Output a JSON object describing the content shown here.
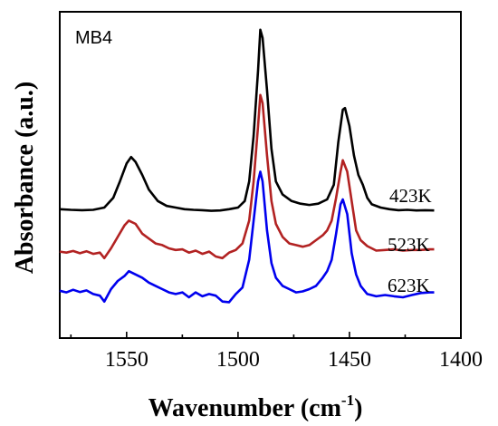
{
  "chart_data": {
    "type": "line",
    "title": "",
    "panel_label": "MB4",
    "xlabel": "Wavenumber (cm",
    "xlabel_sup": "-1",
    "xlabel_close": ")",
    "ylabel": "Absorbance (a.u.)",
    "x_reversed": true,
    "xlim": [
      1580,
      1400
    ],
    "ylim": [
      0,
      1
    ],
    "y_ticks_shown": false,
    "x_ticks": [
      1550,
      1500,
      1450,
      1400
    ],
    "x_tick_labels": [
      "1550",
      "1500",
      "1450",
      "1400"
    ],
    "legend": "inline-right",
    "series": [
      {
        "name": "423K",
        "color": "#000000",
        "points": [
          [
            1580,
            0.395
          ],
          [
            1575,
            0.393
          ],
          [
            1570,
            0.392
          ],
          [
            1565,
            0.393
          ],
          [
            1560,
            0.4
          ],
          [
            1556,
            0.43
          ],
          [
            1553,
            0.48
          ],
          [
            1550,
            0.535
          ],
          [
            1548,
            0.555
          ],
          [
            1546,
            0.54
          ],
          [
            1543,
            0.5
          ],
          [
            1540,
            0.455
          ],
          [
            1536,
            0.42
          ],
          [
            1532,
            0.405
          ],
          [
            1528,
            0.4
          ],
          [
            1524,
            0.395
          ],
          [
            1520,
            0.393
          ],
          [
            1516,
            0.392
          ],
          [
            1512,
            0.39
          ],
          [
            1508,
            0.391
          ],
          [
            1504,
            0.395
          ],
          [
            1500,
            0.4
          ],
          [
            1497,
            0.42
          ],
          [
            1495,
            0.48
          ],
          [
            1493,
            0.62
          ],
          [
            1491,
            0.82
          ],
          [
            1490,
            0.945
          ],
          [
            1489,
            0.92
          ],
          [
            1487,
            0.76
          ],
          [
            1485,
            0.58
          ],
          [
            1483,
            0.48
          ],
          [
            1480,
            0.44
          ],
          [
            1476,
            0.42
          ],
          [
            1472,
            0.412
          ],
          [
            1468,
            0.408
          ],
          [
            1464,
            0.412
          ],
          [
            1460,
            0.425
          ],
          [
            1457,
            0.47
          ],
          [
            1455,
            0.6
          ],
          [
            1453,
            0.7
          ],
          [
            1452,
            0.705
          ],
          [
            1450,
            0.65
          ],
          [
            1448,
            0.56
          ],
          [
            1446,
            0.5
          ],
          [
            1444,
            0.47
          ],
          [
            1442,
            0.43
          ],
          [
            1440,
            0.41
          ],
          [
            1436,
            0.4
          ],
          [
            1432,
            0.395
          ],
          [
            1428,
            0.392
          ],
          [
            1424,
            0.393
          ],
          [
            1420,
            0.391
          ],
          [
            1416,
            0.392
          ],
          [
            1412,
            0.391
          ]
        ]
      },
      {
        "name": "523K",
        "color": "#b22222",
        "points": [
          [
            1580,
            0.265
          ],
          [
            1577,
            0.262
          ],
          [
            1574,
            0.267
          ],
          [
            1571,
            0.26
          ],
          [
            1568,
            0.266
          ],
          [
            1565,
            0.258
          ],
          [
            1562,
            0.262
          ],
          [
            1560,
            0.245
          ],
          [
            1557,
            0.275
          ],
          [
            1554,
            0.31
          ],
          [
            1551,
            0.345
          ],
          [
            1549,
            0.36
          ],
          [
            1546,
            0.35
          ],
          [
            1543,
            0.32
          ],
          [
            1540,
            0.305
          ],
          [
            1537,
            0.29
          ],
          [
            1534,
            0.285
          ],
          [
            1531,
            0.275
          ],
          [
            1528,
            0.27
          ],
          [
            1525,
            0.272
          ],
          [
            1522,
            0.262
          ],
          [
            1519,
            0.268
          ],
          [
            1516,
            0.258
          ],
          [
            1513,
            0.265
          ],
          [
            1510,
            0.25
          ],
          [
            1507,
            0.245
          ],
          [
            1504,
            0.262
          ],
          [
            1501,
            0.27
          ],
          [
            1498,
            0.29
          ],
          [
            1495,
            0.36
          ],
          [
            1493,
            0.48
          ],
          [
            1491,
            0.65
          ],
          [
            1490,
            0.745
          ],
          [
            1489,
            0.72
          ],
          [
            1487,
            0.56
          ],
          [
            1485,
            0.42
          ],
          [
            1483,
            0.35
          ],
          [
            1480,
            0.31
          ],
          [
            1477,
            0.29
          ],
          [
            1474,
            0.285
          ],
          [
            1471,
            0.28
          ],
          [
            1468,
            0.285
          ],
          [
            1465,
            0.3
          ],
          [
            1462,
            0.315
          ],
          [
            1460,
            0.33
          ],
          [
            1458,
            0.36
          ],
          [
            1456,
            0.43
          ],
          [
            1454,
            0.51
          ],
          [
            1453,
            0.545
          ],
          [
            1451,
            0.51
          ],
          [
            1449,
            0.42
          ],
          [
            1447,
            0.33
          ],
          [
            1445,
            0.3
          ],
          [
            1442,
            0.282
          ],
          [
            1438,
            0.268
          ],
          [
            1434,
            0.27
          ],
          [
            1430,
            0.272
          ],
          [
            1426,
            0.268
          ],
          [
            1422,
            0.27
          ],
          [
            1418,
            0.27
          ],
          [
            1414,
            0.272
          ],
          [
            1412,
            0.272
          ]
        ]
      },
      {
        "name": "623K",
        "color": "#0000ee",
        "points": [
          [
            1580,
            0.145
          ],
          [
            1577,
            0.14
          ],
          [
            1574,
            0.148
          ],
          [
            1571,
            0.141
          ],
          [
            1568,
            0.146
          ],
          [
            1565,
            0.135
          ],
          [
            1562,
            0.13
          ],
          [
            1560,
            0.112
          ],
          [
            1557,
            0.15
          ],
          [
            1554,
            0.175
          ],
          [
            1551,
            0.19
          ],
          [
            1549,
            0.205
          ],
          [
            1546,
            0.195
          ],
          [
            1543,
            0.185
          ],
          [
            1540,
            0.17
          ],
          [
            1537,
            0.16
          ],
          [
            1534,
            0.15
          ],
          [
            1531,
            0.14
          ],
          [
            1528,
            0.135
          ],
          [
            1525,
            0.14
          ],
          [
            1522,
            0.125
          ],
          [
            1519,
            0.14
          ],
          [
            1516,
            0.128
          ],
          [
            1513,
            0.135
          ],
          [
            1510,
            0.13
          ],
          [
            1507,
            0.112
          ],
          [
            1504,
            0.11
          ],
          [
            1501,
            0.135
          ],
          [
            1498,
            0.155
          ],
          [
            1495,
            0.24
          ],
          [
            1493,
            0.36
          ],
          [
            1491,
            0.48
          ],
          [
            1490,
            0.51
          ],
          [
            1489,
            0.48
          ],
          [
            1487,
            0.33
          ],
          [
            1485,
            0.23
          ],
          [
            1483,
            0.185
          ],
          [
            1480,
            0.16
          ],
          [
            1477,
            0.15
          ],
          [
            1474,
            0.14
          ],
          [
            1471,
            0.143
          ],
          [
            1468,
            0.15
          ],
          [
            1465,
            0.16
          ],
          [
            1462,
            0.185
          ],
          [
            1460,
            0.205
          ],
          [
            1458,
            0.24
          ],
          [
            1456,
            0.32
          ],
          [
            1454,
            0.41
          ],
          [
            1453,
            0.425
          ],
          [
            1451,
            0.38
          ],
          [
            1449,
            0.26
          ],
          [
            1447,
            0.195
          ],
          [
            1445,
            0.16
          ],
          [
            1442,
            0.135
          ],
          [
            1438,
            0.128
          ],
          [
            1434,
            0.132
          ],
          [
            1430,
            0.128
          ],
          [
            1426,
            0.125
          ],
          [
            1422,
            0.132
          ],
          [
            1418,
            0.138
          ],
          [
            1414,
            0.14
          ],
          [
            1412,
            0.14
          ]
        ]
      }
    ]
  }
}
